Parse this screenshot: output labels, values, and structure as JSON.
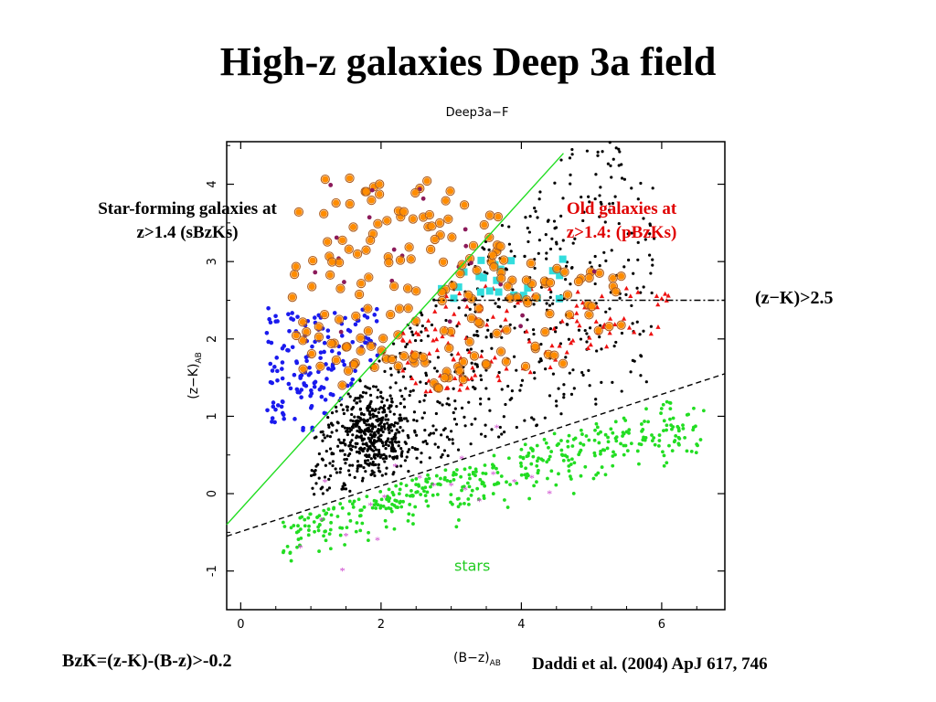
{
  "page": {
    "title": "High-z galaxies Deep 3a field",
    "annotations": {
      "star_forming": [
        "Star-forming galaxies at",
        "z>1.4 (sBzKs)"
      ],
      "old": [
        "Old galaxies at",
        "z>1.4:  (pBzKs)"
      ],
      "zk_cut": "(z−K)>2.5",
      "bzk_criterion": "BzK=(z-K)-(B-z)>-0.2",
      "citation": "Daddi et al. (2004) ApJ 617, 746"
    }
  },
  "chart_data": {
    "type": "scatter",
    "title": "Deep3a−F",
    "xlabel": "(B−z)",
    "xlabel_sub": "AB",
    "ylabel": "(z−K)",
    "ylabel_sub": "AB",
    "xlim": [
      -0.2,
      6.9
    ],
    "ylim": [
      -1.5,
      4.55
    ],
    "xticks": [
      0,
      2,
      4,
      6
    ],
    "yticks": [
      -1,
      0,
      1,
      2,
      3,
      4
    ],
    "grid": false,
    "colors": {
      "stars": "#22dd22",
      "star_markers": "#cc44cc",
      "low_z": "#000000",
      "sbzk": "#1a1aee",
      "pbzk": "#ee1111",
      "orange": "#ff8c00",
      "orange_ring": "#b06020",
      "cyan": "#33dddd",
      "bzk_line": "#22dd22"
    },
    "lines": [
      {
        "name": "BzK = -0.2",
        "style": "solid",
        "color": "#22dd22",
        "points": [
          [
            -0.2,
            -0.4
          ],
          [
            4.6,
            4.4
          ]
        ]
      },
      {
        "name": "stellar boundary",
        "style": "dashed",
        "color": "#000000",
        "points": [
          [
            -0.2,
            -0.55
          ],
          [
            6.9,
            1.55
          ]
        ]
      },
      {
        "name": "(z-K) = 2.5",
        "style": "dashdot",
        "color": "#000000",
        "points": [
          [
            2.75,
            2.5
          ],
          [
            6.9,
            2.5
          ]
        ]
      }
    ],
    "regions": [
      {
        "name": "stars",
        "color": "#22dd22",
        "n": 430,
        "kind": "stars",
        "x_range": [
          0.6,
          6.6
        ]
      },
      {
        "name": "low-z galaxies",
        "color": "#000000",
        "n": 1100,
        "kind": "lowz"
      },
      {
        "name": "sBzK",
        "color": "#1a1aee",
        "n": 190,
        "kind": "sbzk"
      },
      {
        "name": "pBzK",
        "color": "#ee1111",
        "n": 170,
        "kind": "pbzk"
      },
      {
        "name": "orange",
        "color": "#ff8c00",
        "n": 300,
        "kind": "orange"
      },
      {
        "name": "cyan",
        "color": "#33dddd",
        "n": 24,
        "kind": "cyan"
      }
    ],
    "star_markers": [
      [
        0.85,
        -0.7
      ],
      [
        1.15,
        -0.35
      ],
      [
        1.5,
        -0.55
      ],
      [
        1.45,
        -1.0
      ],
      [
        2.05,
        -0.05
      ],
      [
        2.55,
        0.2
      ],
      [
        3.0,
        0.1
      ],
      [
        3.15,
        0.45
      ],
      [
        3.2,
        0.05
      ],
      [
        3.6,
        0.25
      ],
      [
        3.9,
        0.15
      ],
      [
        4.15,
        0.2
      ],
      [
        2.2,
        0.35
      ],
      [
        1.85,
        -0.15
      ],
      [
        3.4,
        -0.1
      ],
      [
        3.65,
        0.85
      ],
      [
        1.2,
        0.15
      ],
      [
        2.75,
        0.1
      ],
      [
        1.95,
        -0.6
      ],
      [
        4.4,
        0.0
      ]
    ],
    "annotation_text": "stars",
    "annotation_xy": [
      3.3,
      -1.0
    ]
  }
}
